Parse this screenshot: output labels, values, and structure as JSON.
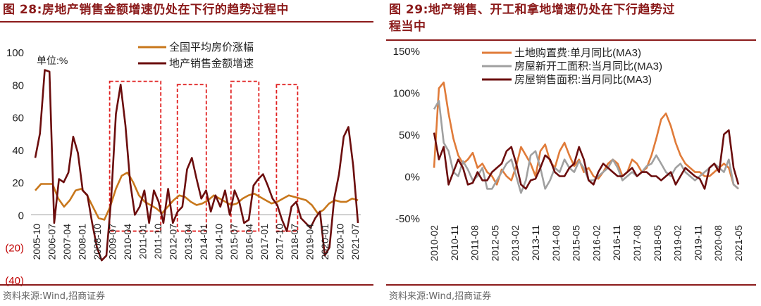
{
  "left": {
    "title": "图 28:房地产销售金额增速仍处在下行的趋势过程中",
    "source": "资料来源:Wind,招商证券",
    "chart_data": {
      "type": "line",
      "ylim": [
        -40,
        100
      ],
      "ytick_labels": [
        "(40)",
        "(20)",
        "0",
        "20",
        "40",
        "60",
        "80",
        "100"
      ],
      "ytick_values": [
        -40,
        -20,
        0,
        20,
        40,
        60,
        80,
        100
      ],
      "unit_label": "单位:%",
      "x_labels": [
        "2005-10",
        "2006-07",
        "2007-04",
        "2008-01",
        "2008-10",
        "2009-07",
        "2010-04",
        "2011-01",
        "2011-10",
        "2012-07",
        "2013-04",
        "2014-01",
        "2014-10",
        "2015-07",
        "2016-04",
        "2017-01",
        "2017-10",
        "2018-07",
        "2019-04",
        "2020-01",
        "2020-10",
        "2021-07"
      ],
      "series": [
        {
          "name": "全国平均房价涨幅",
          "color": "#c8771b",
          "values": [
            15,
            19,
            19,
            19,
            10,
            5,
            9,
            15,
            16,
            12,
            5,
            -2,
            -3,
            5,
            16,
            24,
            26,
            20,
            12,
            8,
            6,
            4,
            1,
            5,
            9,
            12,
            11,
            8,
            6,
            7,
            9,
            12,
            10,
            8,
            6,
            7,
            10,
            12,
            13,
            11,
            9,
            7,
            8,
            10,
            12,
            11,
            10,
            9,
            6,
            1,
            3,
            7,
            9,
            8,
            8,
            10,
            9
          ]
        },
        {
          "name": "地产销售金额增速",
          "color": "#6b0d0d",
          "values": [
            35,
            50,
            89,
            88,
            -5,
            22,
            20,
            26,
            48,
            38,
            15,
            12,
            -5,
            -20,
            -28,
            -25,
            10,
            62,
            80,
            55,
            20,
            0,
            5,
            15,
            -5,
            15,
            8,
            -5,
            16,
            -5,
            2,
            5,
            28,
            35,
            22,
            10,
            15,
            2,
            12,
            5,
            15,
            0,
            15,
            8,
            -5,
            -3,
            18,
            22,
            25,
            18,
            10,
            6,
            -3,
            -10,
            5,
            8,
            -2,
            -5,
            -8,
            -2,
            2,
            -25,
            -20,
            10,
            25,
            48,
            54,
            30,
            -5
          ]
        }
      ],
      "dashed_boxes": [
        {
          "x_from": "2009-07",
          "x_to": "2011-10",
          "y_from": -10,
          "y_to": 82
        },
        {
          "x_from": "2012-10",
          "x_to": "2014-01",
          "y_from": -10,
          "y_to": 80
        },
        {
          "x_from": "2015-07",
          "x_to": "2016-07",
          "y_from": -10,
          "y_to": 82
        },
        {
          "x_from": "2017-10",
          "x_to": "2019-07",
          "y_from": -10,
          "y_to": 80
        }
      ],
      "legend_placement": "top-center"
    }
  },
  "right": {
    "title_lines": [
      "图 29:地产销售、开工和拿地增速仍处在下行趋势过",
      "程当中"
    ],
    "source": "资料来源:Wind,招商证券",
    "chart_data": {
      "type": "line",
      "ylim": [
        -50,
        150
      ],
      "ytick_labels": [
        "-50%",
        "0%",
        "50%",
        "100%",
        "150%"
      ],
      "ytick_values": [
        -50,
        0,
        50,
        100,
        150
      ],
      "x_labels": [
        "2010-02",
        "2010-11",
        "2011-08",
        "2012-05",
        "2013-02",
        "2013-11",
        "2014-08",
        "2015-05",
        "2016-02",
        "2016-11",
        "2017-08",
        "2018-05",
        "2019-02",
        "2019-11",
        "2020-08",
        "2021-05"
      ],
      "series": [
        {
          "name": "土地购置费:单月同比(MA3)",
          "color": "#e07b39",
          "values": [
            10,
            105,
            112,
            75,
            45,
            25,
            15,
            20,
            28,
            10,
            15,
            5,
            0,
            -10,
            8,
            0,
            -5,
            12,
            35,
            25,
            15,
            0,
            30,
            38,
            18,
            10,
            30,
            40,
            25,
            12,
            20,
            5,
            10,
            0,
            -3,
            5,
            15,
            20,
            15,
            0,
            5,
            20,
            15,
            5,
            10,
            25,
            45,
            68,
            75,
            60,
            40,
            25,
            15,
            10,
            5,
            5,
            0,
            0,
            5,
            10,
            15,
            10,
            -10,
            -15
          ]
        },
        {
          "name": "房屋新开工面积:当月同比(MA3)",
          "color": "#a0a0a0",
          "values": [
            80,
            90,
            40,
            30,
            5,
            0,
            18,
            8,
            -5,
            0,
            10,
            -15,
            -15,
            -5,
            5,
            15,
            20,
            0,
            -20,
            -5,
            25,
            30,
            10,
            -15,
            -5,
            10,
            5,
            20,
            10,
            5,
            18,
            10,
            -5,
            -5,
            0,
            5,
            10,
            20,
            10,
            -5,
            0,
            5,
            0,
            5,
            12,
            15,
            25,
            15,
            5,
            0,
            10,
            15,
            5,
            0,
            -5,
            0,
            5,
            10,
            15,
            10,
            5,
            20,
            -10,
            -15
          ]
        },
        {
          "name": "房屋销售面积:当月同比(MA3)",
          "color": "#6b0d0d",
          "values": [
            52,
            20,
            35,
            -10,
            5,
            20,
            10,
            -10,
            -8,
            5,
            -5,
            -5,
            5,
            10,
            15,
            30,
            35,
            15,
            -10,
            -15,
            -5,
            -3,
            10,
            25,
            20,
            5,
            0,
            0,
            10,
            15,
            35,
            20,
            -5,
            -10,
            5,
            15,
            10,
            5,
            0,
            0,
            5,
            10,
            0,
            5,
            5,
            0,
            0,
            -5,
            0,
            5,
            -10,
            0,
            10,
            5,
            0,
            -3,
            -15,
            10,
            15,
            5,
            50,
            55,
            10,
            -10
          ]
        }
      ],
      "legend_placement": "top-left"
    }
  }
}
